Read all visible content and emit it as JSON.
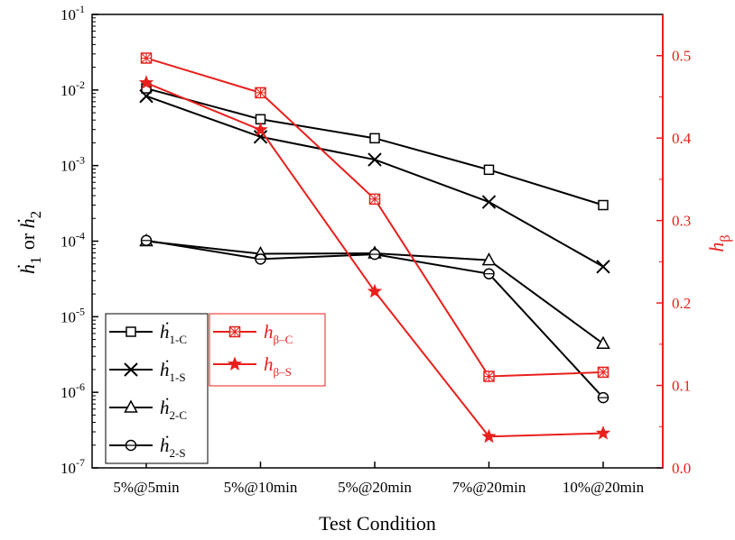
{
  "chart_data": {
    "type": "line",
    "categories": [
      "5%@5min",
      "5%@10min",
      "5%@20min",
      "7%@20min",
      "10%@20min"
    ],
    "xlabel": "Test Condition",
    "left_axis": {
      "label_parts": [
        {
          "text": "h",
          "dot": true,
          "sub": "1"
        },
        {
          "text": " or "
        },
        {
          "text": "h",
          "dot": true,
          "sub": "2"
        }
      ],
      "scale": "log",
      "ylim": [
        1e-07,
        0.1
      ],
      "tick_labels": [
        {
          "base": "10",
          "exp": "-7"
        },
        {
          "base": "10",
          "exp": "-6"
        },
        {
          "base": "10",
          "exp": "-5"
        },
        {
          "base": "10",
          "exp": "-4"
        },
        {
          "base": "10",
          "exp": "-3"
        },
        {
          "base": "10",
          "exp": "-2"
        },
        {
          "base": "10",
          "exp": "-1"
        }
      ]
    },
    "right_axis": {
      "label": {
        "text": "h",
        "sub": "β"
      },
      "scale": "linear",
      "ylim": [
        0,
        0.55
      ],
      "ticks": [
        "0.0",
        "0.1",
        "0.2",
        "0.3",
        "0.4",
        "0.5"
      ],
      "color": "#e8201c"
    },
    "series": [
      {
        "label": "h",
        "dot": true,
        "sub": "1-C",
        "axis": "left",
        "marker": "square",
        "color": "#000000",
        "values": [
          0.0105,
          0.0041,
          0.0023,
          0.00088,
          0.0003
        ]
      },
      {
        "label": "h",
        "dot": true,
        "sub": "1-S",
        "axis": "left",
        "marker": "x",
        "color": "#000000",
        "values": [
          0.0083,
          0.0024,
          0.0012,
          0.00033,
          4.6e-05
        ]
      },
      {
        "label": "h",
        "dot": true,
        "sub": "2-C",
        "axis": "left",
        "marker": "triangle",
        "color": "#000000",
        "values": [
          0.0001,
          6.8e-05,
          6.9e-05,
          5.6e-05,
          4.4e-06
        ]
      },
      {
        "label": "h",
        "dot": true,
        "sub": "2-S",
        "axis": "left",
        "marker": "circle-half",
        "color": "#000000",
        "values": [
          0.000102,
          5.8e-05,
          6.7e-05,
          3.7e-05,
          8.5e-07
        ]
      },
      {
        "label": "h",
        "dot": false,
        "sub": "β–C",
        "axis": "right",
        "marker": "square-cross",
        "color": "#e8201c",
        "values": [
          0.497,
          0.455,
          0.326,
          0.111,
          0.116
        ]
      },
      {
        "label": "h",
        "dot": false,
        "sub": "β–S",
        "axis": "right",
        "marker": "star",
        "color": "#e8201c",
        "values": [
          0.467,
          0.41,
          0.214,
          0.038,
          0.042
        ]
      }
    ],
    "grid": false,
    "legend": "bottom-left"
  }
}
